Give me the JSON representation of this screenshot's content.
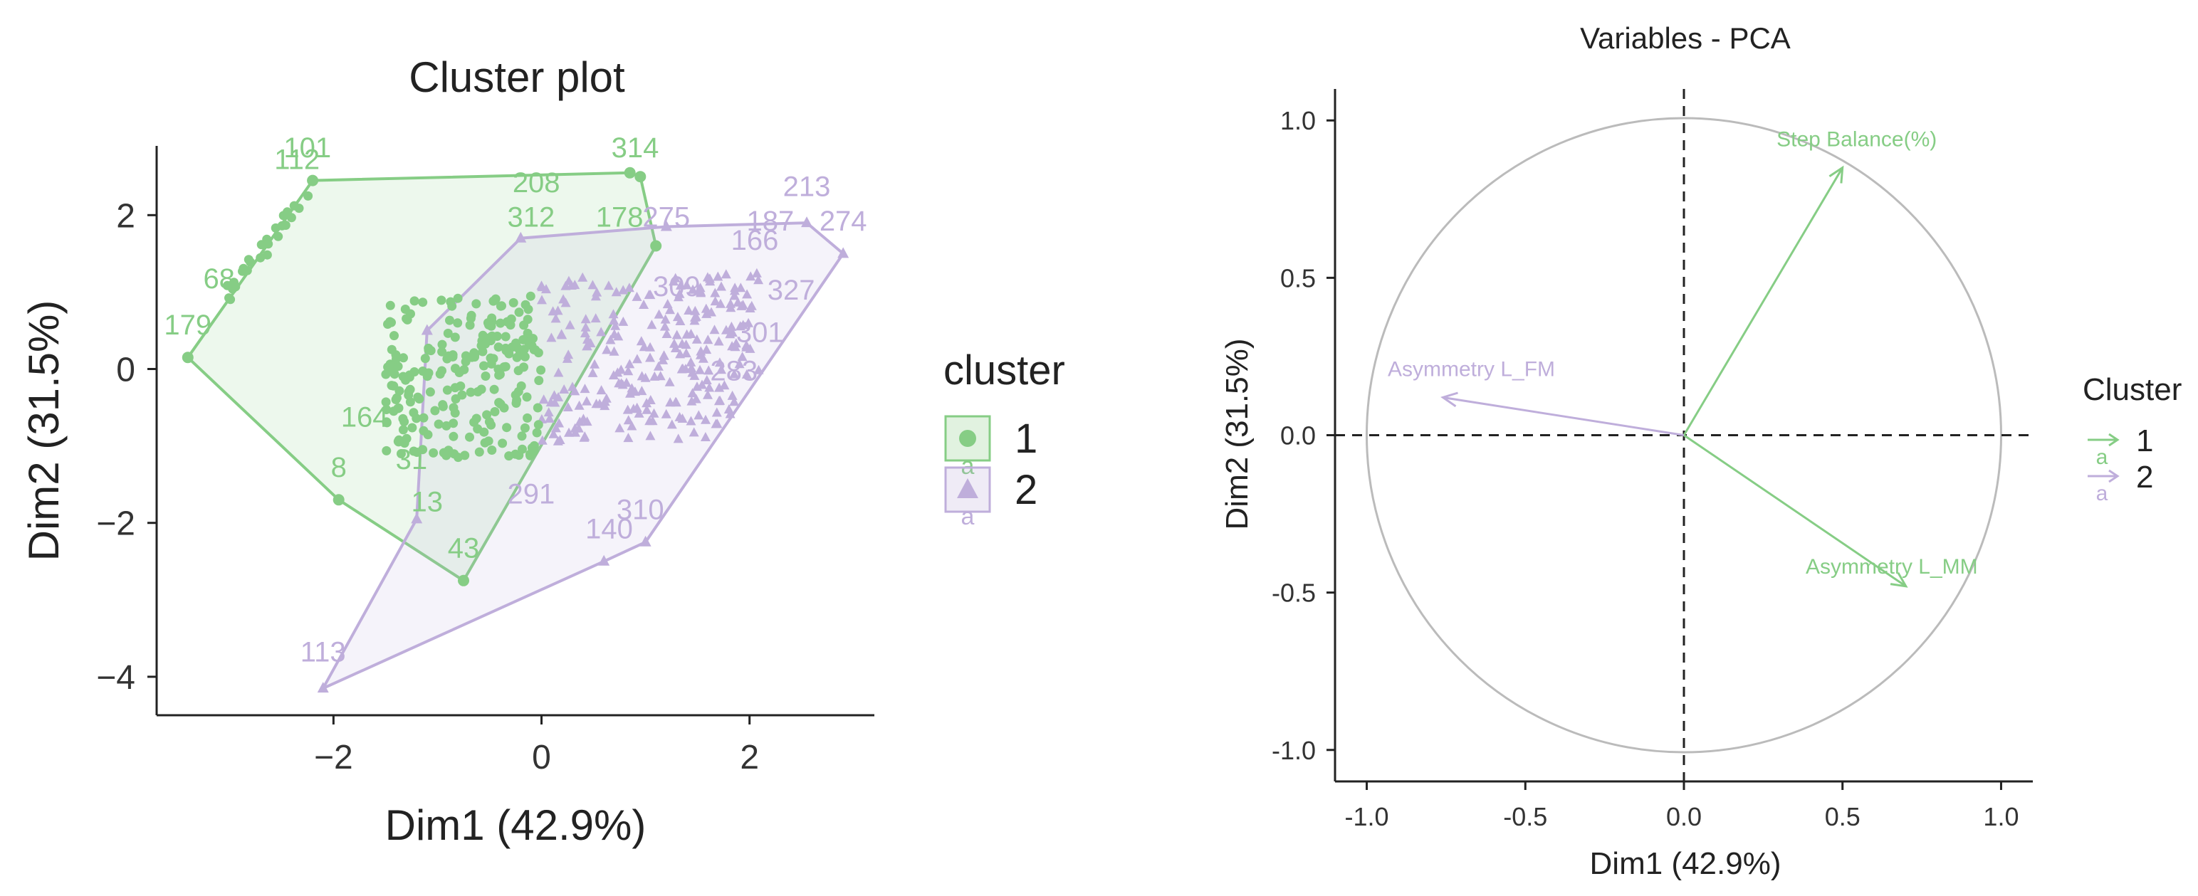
{
  "colors": {
    "cluster1": "#86cd85",
    "cluster2": "#bfaedb",
    "axis": "#222222",
    "circle": "#bbbbbb",
    "dash": "#222222"
  },
  "chart_data": [
    {
      "type": "scatter",
      "title": "Cluster plot",
      "xlabel": "Dim1 (42.9%)",
      "ylabel": "Dim2 (31.5%)",
      "xlim": [
        -3.7,
        3.2
      ],
      "ylim": [
        -4.5,
        2.9
      ],
      "xticks": [
        -2,
        0,
        2
      ],
      "yticks": [
        -4,
        -2,
        0,
        2
      ],
      "legend": {
        "title": "cluster",
        "entries": [
          "1",
          "2"
        ],
        "placement": "right"
      },
      "hulls": [
        {
          "cluster": "1",
          "points": [
            [
              -3.4,
              0.15
            ],
            [
              -2.2,
              2.45
            ],
            [
              0.85,
              2.55
            ],
            [
              0.95,
              2.5
            ],
            [
              1.1,
              1.6
            ],
            [
              -0.75,
              -2.75
            ],
            [
              -1.95,
              -1.7
            ]
          ]
        },
        {
          "cluster": "2",
          "points": [
            [
              -2.1,
              -4.15
            ],
            [
              -1.2,
              -1.95
            ],
            [
              -1.1,
              0.5
            ],
            [
              -0.2,
              1.7
            ],
            [
              1.2,
              1.85
            ],
            [
              2.55,
              1.9
            ],
            [
              2.9,
              1.5
            ],
            [
              1.0,
              -2.25
            ],
            [
              0.6,
              -2.5
            ]
          ]
        }
      ],
      "point_labels": [
        {
          "text": "179",
          "x": -3.4,
          "y": 0.45,
          "cluster": "1"
        },
        {
          "text": "101",
          "x": -2.25,
          "y": 2.75,
          "cluster": "1"
        },
        {
          "text": "112",
          "x": -2.35,
          "y": 2.6,
          "cluster": "1"
        },
        {
          "text": "68",
          "x": -3.1,
          "y": 1.05,
          "cluster": "1"
        },
        {
          "text": "8",
          "x": -1.95,
          "y": -1.4,
          "cluster": "1"
        },
        {
          "text": "43",
          "x": -0.75,
          "y": -2.45,
          "cluster": "1"
        },
        {
          "text": "164",
          "x": -1.7,
          "y": -0.75,
          "cluster": "1"
        },
        {
          "text": "31",
          "x": -1.25,
          "y": -1.3,
          "cluster": "1"
        },
        {
          "text": "208",
          "x": -0.05,
          "y": 2.3,
          "cluster": "1"
        },
        {
          "text": "314",
          "x": 0.9,
          "y": 2.75,
          "cluster": "1"
        },
        {
          "text": "312",
          "x": -0.1,
          "y": 1.85,
          "cluster": "1"
        },
        {
          "text": "178",
          "x": 0.75,
          "y": 1.85,
          "cluster": "1"
        },
        {
          "text": "13",
          "x": -1.1,
          "y": -1.85,
          "cluster": "1"
        },
        {
          "text": "213",
          "x": 2.55,
          "y": 2.25,
          "cluster": "2"
        },
        {
          "text": "187",
          "x": 2.2,
          "y": 1.8,
          "cluster": "2"
        },
        {
          "text": "274",
          "x": 2.9,
          "y": 1.8,
          "cluster": "2"
        },
        {
          "text": "275",
          "x": 1.2,
          "y": 1.85,
          "cluster": "2"
        },
        {
          "text": "166",
          "x": 2.05,
          "y": 1.55,
          "cluster": "2"
        },
        {
          "text": "327",
          "x": 2.4,
          "y": 0.9,
          "cluster": "2"
        },
        {
          "text": "301",
          "x": 2.1,
          "y": 0.35,
          "cluster": "2"
        },
        {
          "text": "283",
          "x": 1.85,
          "y": -0.15,
          "cluster": "2"
        },
        {
          "text": "309",
          "x": 1.3,
          "y": 0.95,
          "cluster": "2"
        },
        {
          "text": "291",
          "x": -0.1,
          "y": -1.75,
          "cluster": "2"
        },
        {
          "text": "140",
          "x": 0.65,
          "y": -2.2,
          "cluster": "2"
        },
        {
          "text": "310",
          "x": 0.95,
          "y": -1.95,
          "cluster": "2"
        },
        {
          "text": "113",
          "x": -2.1,
          "y": -3.8,
          "cluster": "2"
        }
      ]
    },
    {
      "type": "line",
      "title": "Variables - PCA",
      "xlabel": "Dim1 (42.9%)",
      "ylabel": "Dim2 (31.5%)",
      "xlim": [
        -1.1,
        1.1
      ],
      "ylim": [
        -1.1,
        1.1
      ],
      "xticks": [
        "-1.0",
        "-0.5",
        "0.0",
        "0.5",
        "1.0"
      ],
      "yticks": [
        "-1.0",
        "-0.5",
        "0.0",
        "0.5",
        "1.0"
      ],
      "legend": {
        "title": "Cluster",
        "entries": [
          "1",
          "2"
        ],
        "placement": "right"
      },
      "arrows": [
        {
          "label": "Step Balance(%)",
          "x": 0.5,
          "y": 0.85,
          "cluster": "1"
        },
        {
          "label": "Asymmetry L_MM",
          "x": 0.7,
          "y": -0.48,
          "cluster": "1"
        },
        {
          "label": "Asymmetry L_FM",
          "x": -0.76,
          "y": 0.12,
          "cluster": "2"
        }
      ]
    }
  ]
}
